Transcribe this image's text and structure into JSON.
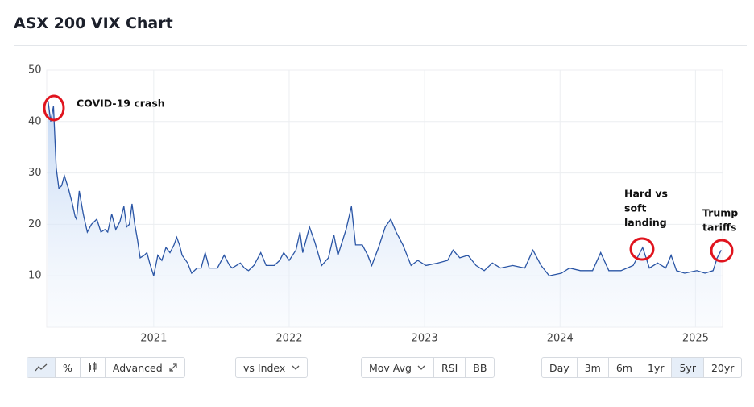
{
  "chart_data": {
    "type": "line",
    "title": "ASX 200 VIX Chart",
    "x": [
      2020.22,
      2020.24,
      2020.26,
      2020.28,
      2020.3,
      2020.32,
      2020.34,
      2020.37,
      2020.4,
      2020.42,
      2020.43,
      2020.45,
      2020.48,
      2020.51,
      2020.54,
      2020.58,
      2020.61,
      2020.64,
      2020.66,
      2020.69,
      2020.72,
      2020.75,
      2020.78,
      2020.8,
      2020.82,
      2020.84,
      2020.86,
      2020.88,
      2020.9,
      2020.93,
      2020.95,
      2020.97,
      2021.0,
      2021.03,
      2021.06,
      2021.09,
      2021.12,
      2021.15,
      2021.17,
      2021.19,
      2021.21,
      2021.25,
      2021.28,
      2021.32,
      2021.35,
      2021.38,
      2021.41,
      2021.47,
      2021.52,
      2021.56,
      2021.58,
      2021.64,
      2021.67,
      2021.7,
      2021.74,
      2021.79,
      2021.83,
      2021.89,
      2021.93,
      2021.96,
      2022.0,
      2022.05,
      2022.08,
      2022.1,
      2022.15,
      2022.19,
      2022.24,
      2022.29,
      2022.33,
      2022.36,
      2022.42,
      2022.46,
      2022.49,
      2022.54,
      2022.58,
      2022.61,
      2022.66,
      2022.71,
      2022.75,
      2022.79,
      2022.84,
      2022.9,
      2022.95,
      2023.01,
      2023.1,
      2023.17,
      2023.21,
      2023.26,
      2023.32,
      2023.38,
      2023.44,
      2023.5,
      2023.56,
      2023.65,
      2023.74,
      2023.8,
      2023.86,
      2023.92,
      2024.01,
      2024.07,
      2024.15,
      2024.24,
      2024.3,
      2024.36,
      2024.45,
      2024.54,
      2024.61,
      2024.66,
      2024.72,
      2024.78,
      2024.82,
      2024.86,
      2024.92,
      2025.01,
      2025.07,
      2025.13,
      2025.16,
      2025.19
    ],
    "values": [
      44,
      40,
      43,
      31,
      27,
      27.5,
      29.5,
      27,
      24,
      21.5,
      21,
      26.5,
      22,
      18.5,
      20,
      21,
      18.5,
      19,
      18.5,
      22,
      19,
      20.5,
      23.5,
      19.5,
      20,
      24,
      20,
      17,
      13.5,
      14,
      14.5,
      12.5,
      10,
      14,
      13,
      15.5,
      14.5,
      16,
      17.5,
      16,
      14,
      12.5,
      10.5,
      11.5,
      11.5,
      14.5,
      11.5,
      11.5,
      14,
      12,
      11.5,
      12.5,
      11.5,
      11,
      12,
      14.5,
      12,
      12,
      13,
      14.5,
      13,
      15,
      18.5,
      14.5,
      19.5,
      16.5,
      12,
      13.5,
      18,
      14,
      19,
      23.5,
      16,
      16,
      14,
      12,
      15.5,
      19.5,
      21,
      18.5,
      16,
      12,
      13,
      12,
      12.5,
      13,
      15,
      13.5,
      14,
      12,
      11,
      12.5,
      11.5,
      12,
      11.5,
      15,
      12,
      10,
      10.5,
      11.5,
      11,
      11,
      14.5,
      11,
      11,
      12,
      15.5,
      11.5,
      12.5,
      11.5,
      14,
      11,
      10.5,
      11,
      10.5,
      11,
      13.5,
      15
    ],
    "color": "#2a55a5",
    "xlim": [
      2020.21,
      2025.2
    ],
    "xticks": [
      2021,
      2022,
      2023,
      2024,
      2025
    ],
    "ylim": [
      0,
      50
    ],
    "yticks": [
      10,
      20,
      30,
      40,
      50
    ],
    "grid": true,
    "annotations": [
      {
        "lines": [
          "COVID-19 crash"
        ]
      },
      {
        "lines": [
          "Hard vs",
          "soft",
          "landing"
        ]
      },
      {
        "lines": [
          "Trump",
          "tariffs"
        ]
      }
    ]
  },
  "toolbar": {
    "advanced": "Advanced",
    "compare": "vs Index",
    "indicators": [
      "Mov Avg",
      "RSI",
      "BB"
    ],
    "ranges": [
      "Day",
      "3m",
      "6m",
      "1yr",
      "5yr",
      "20yr"
    ]
  }
}
